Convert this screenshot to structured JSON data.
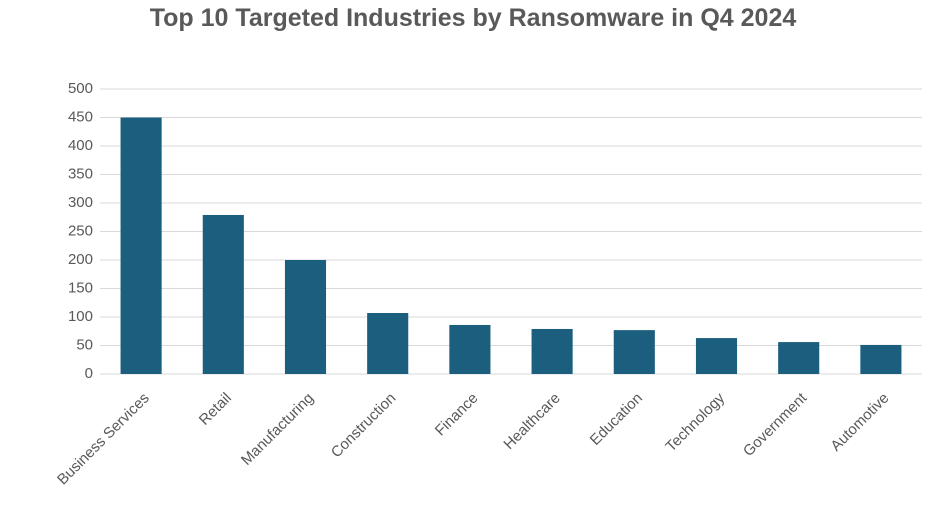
{
  "chart_data": {
    "type": "bar",
    "title": "Top 10 Targeted Industries by Ransomware in Q4 2024",
    "categories": [
      "Business Services",
      "Retail",
      "Manufacturing",
      "Construction",
      "Finance",
      "Healthcare",
      "Education",
      "Technology",
      "Government",
      "Automotive"
    ],
    "values": [
      450,
      279,
      200,
      107,
      86,
      79,
      77,
      63,
      56,
      51
    ],
    "color": "#1b5e7e",
    "ylim": [
      0,
      500
    ],
    "yticks": [
      0,
      50,
      100,
      150,
      200,
      250,
      300,
      350,
      400,
      450,
      500
    ],
    "grid": true
  }
}
